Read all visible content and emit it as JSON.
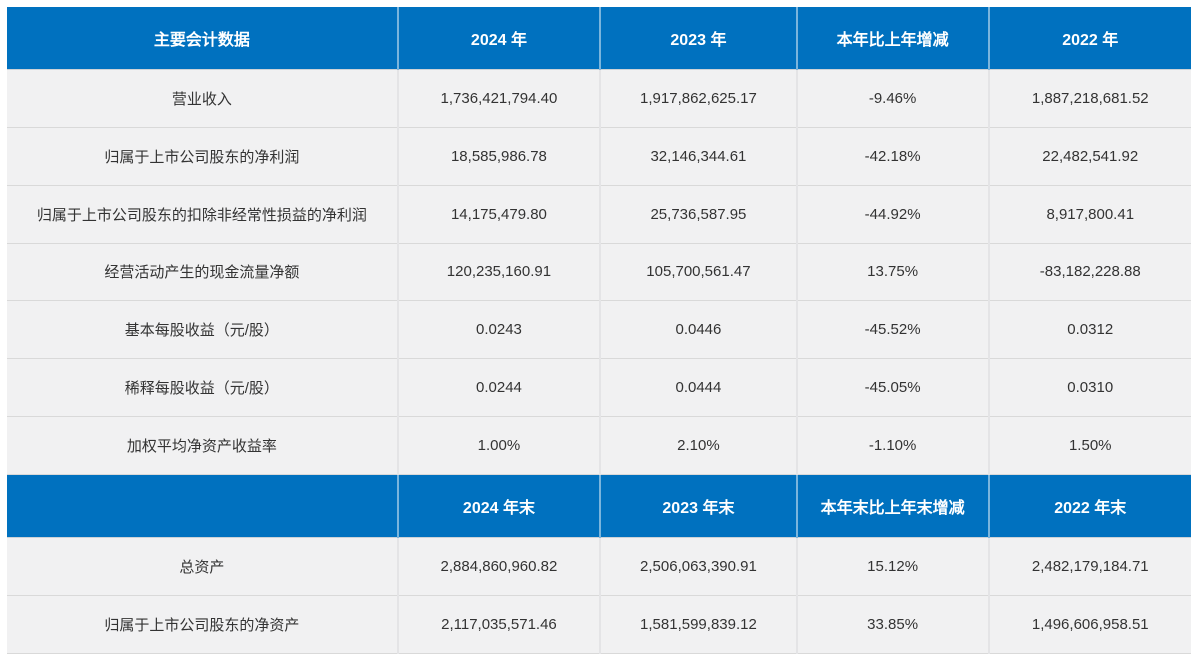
{
  "page": {
    "background_color": "#ffffff"
  },
  "table": {
    "accent_color": "#0071bf",
    "row_background": "#f1f1f2",
    "header_text_color": "#ffffff",
    "body_text_color": "#333333",
    "sections": [
      {
        "headers": [
          "主要会计数据",
          "2024 年",
          "2023 年",
          "本年比上年增减",
          "2022 年"
        ],
        "rows": [
          {
            "cells": [
              "营业收入",
              "1,736,421,794.40",
              "1,917,862,625.17",
              "-9.46%",
              "1,887,218,681.52"
            ]
          },
          {
            "cells": [
              "归属于上市公司股东的净利润",
              "18,585,986.78",
              "32,146,344.61",
              "-42.18%",
              "22,482,541.92"
            ]
          },
          {
            "cells": [
              "归属于上市公司股东的扣除非经常性损益的净利润",
              "14,175,479.80",
              "25,736,587.95",
              "-44.92%",
              "8,917,800.41"
            ]
          },
          {
            "cells": [
              "经营活动产生的现金流量净额",
              "120,235,160.91",
              "105,700,561.47",
              "13.75%",
              "-83,182,228.88"
            ]
          },
          {
            "cells": [
              "基本每股收益（元/股）",
              "0.0243",
              "0.0446",
              "-45.52%",
              "0.0312"
            ]
          },
          {
            "cells": [
              "稀释每股收益（元/股）",
              "0.0244",
              "0.0444",
              "-45.05%",
              "0.0310"
            ]
          },
          {
            "cells": [
              "加权平均净资产收益率",
              "1.00%",
              "2.10%",
              "-1.10%",
              "1.50%"
            ]
          }
        ]
      },
      {
        "headers": [
          "",
          "2024 年末",
          "2023 年末",
          "本年末比上年末增减",
          "2022 年末"
        ],
        "rows": [
          {
            "cells": [
              "总资产",
              "2,884,860,960.82",
              "2,506,063,390.91",
              "15.12%",
              "2,482,179,184.71"
            ]
          },
          {
            "cells": [
              "归属于上市公司股东的净资产",
              "2,117,035,571.46",
              "1,581,599,839.12",
              "33.85%",
              "1,496,606,958.51"
            ]
          }
        ]
      }
    ]
  }
}
